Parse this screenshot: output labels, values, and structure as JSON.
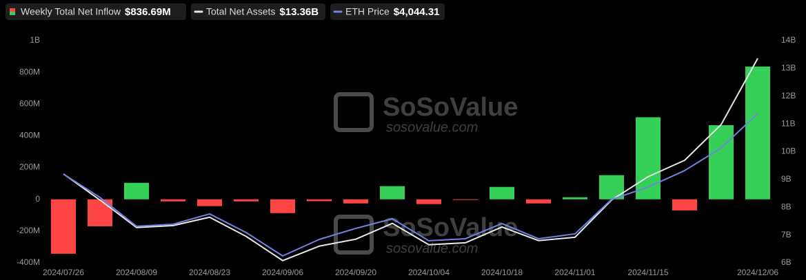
{
  "chart_data": {
    "type": "bar-line",
    "legend": [
      {
        "label": "Weekly Total Net Inflow",
        "value": "$836.69M"
      },
      {
        "label": "Total Net Assets",
        "value": "$13.36B"
      },
      {
        "label": "ETH Price",
        "value": "$4,044.31"
      }
    ],
    "watermark": {
      "brand": "SoSoValue",
      "site": "sosovalue.com"
    },
    "categories": [
      "2024/07/26",
      null,
      "2024/08/09",
      null,
      "2024/08/23",
      null,
      "2024/09/06",
      null,
      "2024/09/20",
      null,
      "2024/10/04",
      null,
      "2024/10/18",
      null,
      "2024/11/01",
      null,
      "2024/11/15",
      null,
      null,
      "2024/12/06"
    ],
    "series": [
      {
        "name": "Weekly Total Net Inflow",
        "type": "bar",
        "color_up": "#34d058",
        "color_down": "#ff4444",
        "values": [
          -343,
          -170,
          104,
          -13,
          -43,
          -13,
          -87,
          -12,
          -26,
          83,
          -30,
          -4,
          78,
          -26,
          13,
          152,
          517,
          -70,
          467,
          836.69
        ]
      },
      {
        "name": "Total Net Assets",
        "type": "line",
        "axis": "y2",
        "color": "#e8e8e8",
        "values": [
          9.2,
          8.26,
          7.27,
          7.34,
          7.64,
          6.95,
          6.08,
          6.6,
          6.85,
          7.42,
          6.65,
          6.72,
          7.29,
          6.8,
          6.92,
          8.26,
          9.1,
          9.69,
          10.98,
          13.36
        ]
      },
      {
        "name": "ETH Price",
        "type": "line",
        "axis": "y3",
        "color": "#6f84e0",
        "values": [
          3270,
          2971,
          2602,
          2628,
          2760,
          2522,
          2223,
          2434,
          2575,
          2698,
          2417,
          2443,
          2637,
          2443,
          2505,
          2945,
          3103,
          3314,
          3604,
          4044.31
        ]
      }
    ],
    "ylim": [
      -400,
      1000
    ],
    "yticks": [
      {
        "value": -400,
        "label": "-400M"
      },
      {
        "value": -200,
        "label": "-200M"
      },
      0,
      {
        "value": 200,
        "label": "200M"
      },
      {
        "value": 400,
        "label": "400M"
      },
      {
        "value": 600,
        "label": "600M"
      },
      {
        "value": 800,
        "label": "800M"
      },
      {
        "value": 1000,
        "label": "1B"
      }
    ],
    "y2lim": [
      6,
      14
    ],
    "y2ticks": [
      {
        "value": 6,
        "label": "6B"
      },
      {
        "value": 7,
        "label": "7B"
      },
      {
        "value": 8,
        "label": "8B"
      },
      {
        "value": 9,
        "label": "9B"
      },
      {
        "value": 10,
        "label": "10B"
      },
      {
        "value": 11,
        "label": "11B"
      },
      {
        "value": 12,
        "label": "12B"
      },
      {
        "value": 13,
        "label": "13B"
      },
      {
        "value": 14,
        "label": "14B"
      }
    ],
    "y3lim": [
      2135,
      4976
    ],
    "grid": false
  }
}
